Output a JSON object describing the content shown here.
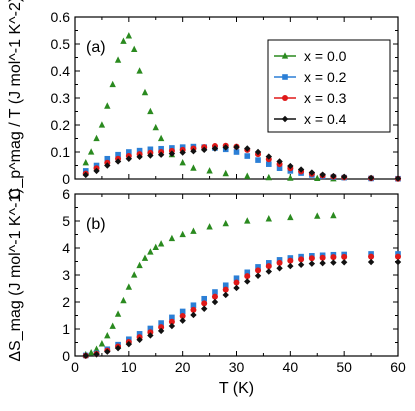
{
  "chart_data": [
    {
      "type": "scatter",
      "panel_label": "(a)",
      "ylabel": "C_p^mag / T (J mol^-1 K^-2)",
      "xlabel": "",
      "xlim": [
        0,
        60
      ],
      "ylim": [
        0,
        0.6
      ],
      "xticks": [
        0,
        10,
        20,
        30,
        40,
        50,
        60
      ],
      "yticks": [
        0,
        0.1,
        0.2,
        0.3,
        0.4,
        0.5,
        0.6
      ],
      "ytick_labels": [
        "0",
        "0.1",
        "0.2",
        "0.3",
        "0.4",
        "0.5",
        "0.6"
      ],
      "legend_position": "top-right",
      "series": [
        {
          "name": "x = 0.0",
          "color": "#2a8a1f",
          "marker": "triangle",
          "x": [
            2,
            3,
            4,
            5,
            6,
            7,
            8,
            9,
            10,
            11,
            12,
            13,
            14,
            15,
            16,
            18,
            20,
            22,
            25,
            28,
            32,
            36,
            40,
            45,
            48
          ],
          "y": [
            0.06,
            0.1,
            0.15,
            0.2,
            0.27,
            0.35,
            0.44,
            0.51,
            0.53,
            0.48,
            0.4,
            0.32,
            0.25,
            0.19,
            0.15,
            0.09,
            0.06,
            0.04,
            0.03,
            0.02,
            0.01,
            0.005,
            0.003,
            0.002,
            0.001
          ]
        },
        {
          "name": "x = 0.2",
          "color": "#2b7fd6",
          "marker": "square",
          "x": [
            2,
            4,
            6,
            8,
            10,
            12,
            14,
            16,
            18,
            20,
            22,
            24,
            26,
            28,
            30,
            32,
            34,
            36,
            38,
            40,
            42,
            44,
            46,
            48,
            50,
            55,
            60
          ],
          "y": [
            0.03,
            0.05,
            0.075,
            0.09,
            0.1,
            0.105,
            0.11,
            0.112,
            0.115,
            0.118,
            0.12,
            0.118,
            0.115,
            0.11,
            0.1,
            0.085,
            0.07,
            0.055,
            0.04,
            0.03,
            0.022,
            0.015,
            0.01,
            0.007,
            0.005,
            0.002,
            0.001
          ]
        },
        {
          "name": "x = 0.3",
          "color": "#e01818",
          "marker": "circle",
          "x": [
            2,
            4,
            6,
            8,
            10,
            12,
            14,
            16,
            18,
            20,
            22,
            24,
            26,
            28,
            30,
            32,
            34,
            36,
            38,
            40,
            42,
            44,
            46,
            48,
            50,
            55,
            60
          ],
          "y": [
            0.02,
            0.04,
            0.06,
            0.075,
            0.085,
            0.092,
            0.097,
            0.1,
            0.104,
            0.108,
            0.113,
            0.118,
            0.122,
            0.123,
            0.12,
            0.108,
            0.092,
            0.073,
            0.055,
            0.04,
            0.028,
            0.019,
            0.013,
            0.009,
            0.006,
            0.003,
            0.001
          ]
        },
        {
          "name": "x = 0.4",
          "color": "#111111",
          "marker": "diamond",
          "x": [
            2,
            4,
            6,
            8,
            10,
            12,
            14,
            16,
            18,
            20,
            22,
            24,
            26,
            28,
            30,
            32,
            34,
            36,
            38,
            40,
            42,
            44,
            46,
            48,
            50,
            55,
            60
          ],
          "y": [
            0.015,
            0.03,
            0.05,
            0.065,
            0.075,
            0.082,
            0.087,
            0.09,
            0.094,
            0.098,
            0.103,
            0.108,
            0.113,
            0.117,
            0.118,
            0.113,
            0.1,
            0.083,
            0.065,
            0.048,
            0.035,
            0.024,
            0.016,
            0.011,
            0.008,
            0.004,
            0.002
          ]
        }
      ]
    },
    {
      "type": "scatter",
      "panel_label": "(b)",
      "ylabel": "ΔS_mag (J mol^-1 K^-1)",
      "xlabel": "T (K)",
      "xlim": [
        0,
        60
      ],
      "ylim": [
        0,
        6
      ],
      "xticks": [
        0,
        10,
        20,
        30,
        40,
        50,
        60
      ],
      "yticks": [
        0,
        1,
        2,
        3,
        4,
        5,
        6
      ],
      "ytick_labels": [
        "0",
        "1",
        "2",
        "3",
        "4",
        "5",
        "6"
      ],
      "series": [
        {
          "name": "x = 0.0",
          "color": "#2a8a1f",
          "marker": "triangle",
          "x": [
            2,
            3,
            4,
            5,
            6,
            7,
            8,
            9,
            10,
            11,
            12,
            13,
            14,
            15,
            16,
            18,
            20,
            22,
            25,
            28,
            32,
            36,
            40,
            45,
            48
          ],
          "y": [
            0.05,
            0.12,
            0.25,
            0.45,
            0.75,
            1.1,
            1.55,
            2.05,
            2.55,
            3.0,
            3.35,
            3.62,
            3.85,
            4.02,
            4.15,
            4.35,
            4.5,
            4.62,
            4.78,
            4.9,
            5.0,
            5.08,
            5.13,
            5.18,
            5.2
          ]
        },
        {
          "name": "x = 0.2",
          "color": "#2b7fd6",
          "marker": "square",
          "x": [
            2,
            4,
            6,
            8,
            10,
            12,
            14,
            16,
            18,
            20,
            22,
            24,
            26,
            28,
            30,
            32,
            34,
            36,
            38,
            40,
            42,
            44,
            46,
            48,
            50,
            55,
            60
          ],
          "y": [
            0.02,
            0.1,
            0.25,
            0.42,
            0.62,
            0.82,
            1.02,
            1.22,
            1.43,
            1.65,
            1.88,
            2.12,
            2.37,
            2.62,
            2.88,
            3.1,
            3.3,
            3.45,
            3.56,
            3.63,
            3.68,
            3.71,
            3.73,
            3.75,
            3.76,
            3.78,
            3.78
          ]
        },
        {
          "name": "x = 0.3",
          "color": "#e01818",
          "marker": "circle",
          "x": [
            2,
            4,
            6,
            8,
            10,
            12,
            14,
            16,
            18,
            20,
            22,
            24,
            26,
            28,
            30,
            32,
            34,
            36,
            38,
            40,
            42,
            44,
            46,
            48,
            50,
            55,
            60
          ],
          "y": [
            0.01,
            0.08,
            0.2,
            0.35,
            0.52,
            0.7,
            0.88,
            1.07,
            1.27,
            1.48,
            1.71,
            1.95,
            2.2,
            2.46,
            2.72,
            2.96,
            3.17,
            3.33,
            3.45,
            3.53,
            3.58,
            3.62,
            3.64,
            3.66,
            3.67,
            3.68,
            3.68
          ]
        },
        {
          "name": "x = 0.4",
          "color": "#111111",
          "marker": "diamond",
          "x": [
            2,
            4,
            6,
            8,
            10,
            12,
            14,
            16,
            18,
            20,
            22,
            24,
            26,
            28,
            30,
            32,
            34,
            36,
            38,
            40,
            42,
            44,
            46,
            48,
            50,
            55,
            60
          ],
          "y": [
            0.01,
            0.06,
            0.16,
            0.29,
            0.44,
            0.6,
            0.76,
            0.93,
            1.11,
            1.31,
            1.52,
            1.75,
            2.0,
            2.26,
            2.52,
            2.76,
            2.97,
            3.13,
            3.25,
            3.33,
            3.38,
            3.42,
            3.44,
            3.46,
            3.47,
            3.48,
            3.48
          ]
        }
      ]
    }
  ]
}
